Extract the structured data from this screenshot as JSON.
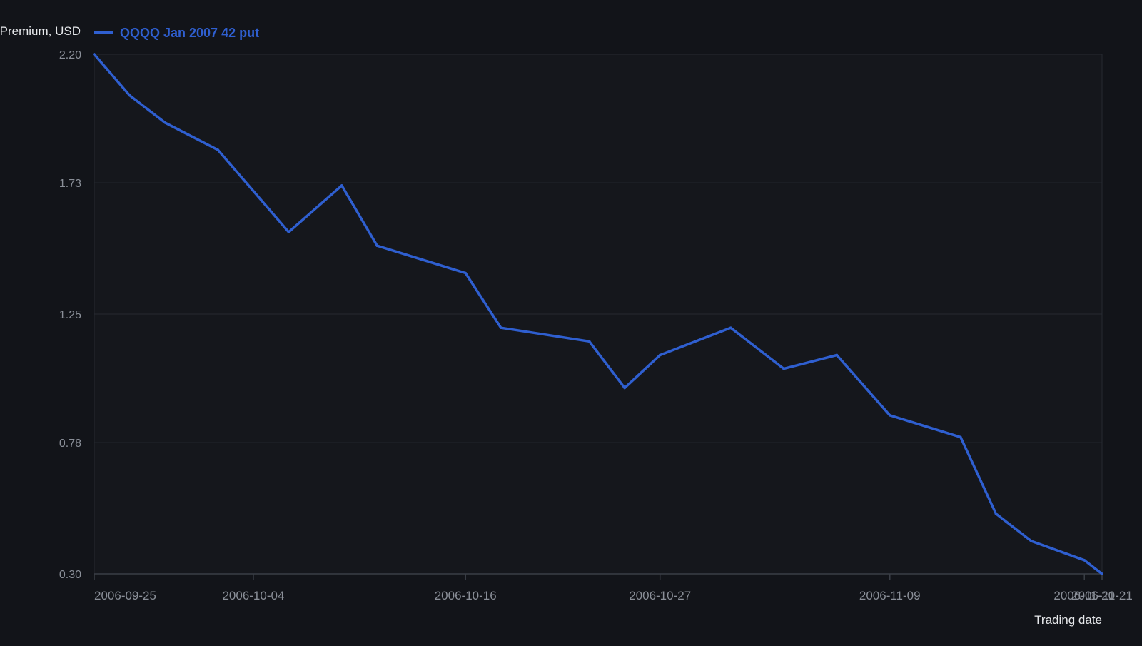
{
  "chart_data": {
    "type": "line",
    "title": "",
    "ylabel": "Premium, USD",
    "xlabel": "Trading date",
    "ylim": [
      0.3,
      2.2
    ],
    "y_ticks": [
      "2.20",
      "1.73",
      "1.25",
      "0.78",
      "0.30"
    ],
    "x_ticks": [
      "2006-09-25",
      "2006-10-04",
      "2006-10-16",
      "2006-10-27",
      "2006-11-09",
      "2006-11-20",
      "2006-11-21"
    ],
    "x_range": [
      "2006-09-25",
      "2006-11-21"
    ],
    "grid": true,
    "legend_position": "top-left",
    "colors": {
      "background": "#121419",
      "plot_background": "#15171c",
      "line": "#2f5fd0",
      "grid": "#262a31",
      "axis": "#3a3e46",
      "tick_text": "#8a8f98",
      "label_text": "#e6e8eb"
    },
    "series": [
      {
        "name": "QQQQ Jan 2007 42 put",
        "x": [
          "2006-09-25",
          "2006-09-27",
          "2006-09-29",
          "2006-10-02",
          "2006-10-06",
          "2006-10-09",
          "2006-10-11",
          "2006-10-16",
          "2006-10-18",
          "2006-10-23",
          "2006-10-25",
          "2006-10-27",
          "2006-10-31",
          "2006-11-03",
          "2006-11-06",
          "2006-11-09",
          "2006-11-13",
          "2006-11-15",
          "2006-11-17",
          "2006-11-20",
          "2006-11-21"
        ],
        "values": [
          2.2,
          2.05,
          1.95,
          1.85,
          1.55,
          1.72,
          1.5,
          1.4,
          1.2,
          1.15,
          0.98,
          1.1,
          1.2,
          1.05,
          1.1,
          0.88,
          0.8,
          0.52,
          0.42,
          0.35,
          0.3
        ]
      }
    ]
  }
}
